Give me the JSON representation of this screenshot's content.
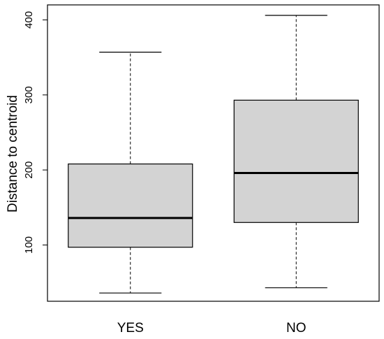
{
  "chart_data": {
    "type": "boxplot",
    "title": "",
    "xlabel": "",
    "ylabel": "Distance to centroid",
    "ylim": [
      25,
      420
    ],
    "yticks": [
      100,
      200,
      300,
      400
    ],
    "grid": false,
    "categories": [
      "YES",
      "NO"
    ],
    "boxes": [
      {
        "category": "YES",
        "whisker_low": 36,
        "q1": 97,
        "median": 136,
        "q3": 208,
        "whisker_high": 357,
        "color": "#d3d3d3"
      },
      {
        "category": "NO",
        "whisker_low": 43,
        "q1": 130,
        "median": 196,
        "q3": 293,
        "whisker_high": 406,
        "color": "#d3d3d3"
      }
    ]
  }
}
